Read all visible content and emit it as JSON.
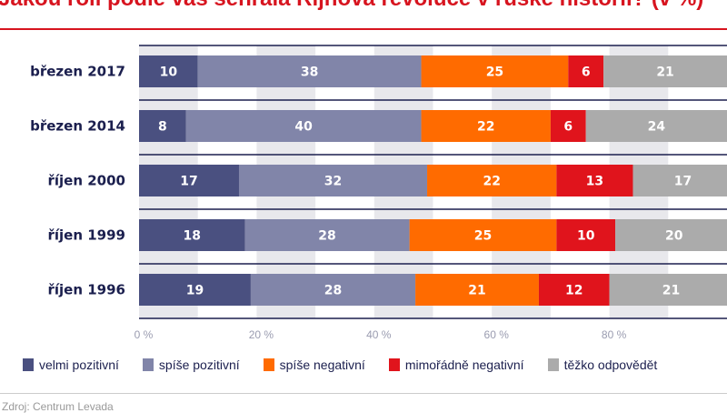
{
  "title": "Jakou roli podle vás sehrála Říjnová revoluce v ruské historii? (v %)",
  "source": "Zdroj: Centrum Levada",
  "chart_data": {
    "type": "bar",
    "orientation": "horizontal",
    "stacked": true,
    "title": "Jakou roli podle vás sehrála Říjnová revoluce v ruské historii? (v %)",
    "categories": [
      "březen 2017",
      "březen 2014",
      "říjen 2000",
      "říjen 1999",
      "říjen 1996"
    ],
    "series": [
      {
        "name": "velmi pozitivní",
        "color": "#4a5080",
        "values": [
          10,
          8,
          17,
          18,
          19
        ]
      },
      {
        "name": "spíše pozitivní",
        "color": "#8185a9",
        "values": [
          38,
          40,
          32,
          28,
          28
        ]
      },
      {
        "name": "spíše negativní",
        "color": "#ff6b00",
        "values": [
          25,
          22,
          22,
          25,
          21
        ]
      },
      {
        "name": "mimořádně negativní",
        "color": "#e0141c",
        "values": [
          6,
          6,
          13,
          10,
          12
        ]
      },
      {
        "name": "těžko odpovědět",
        "color": "#ababab",
        "values": [
          21,
          24,
          17,
          20,
          21
        ]
      }
    ],
    "xlim": [
      0,
      100
    ],
    "xticks": [
      "0 %",
      "20 %",
      "40 %",
      "60 %",
      "80 %"
    ],
    "xtick_values": [
      0,
      20,
      40,
      60,
      80
    ],
    "grid": "alternating vertical bands every 10 %",
    "legend_position": "bottom"
  }
}
